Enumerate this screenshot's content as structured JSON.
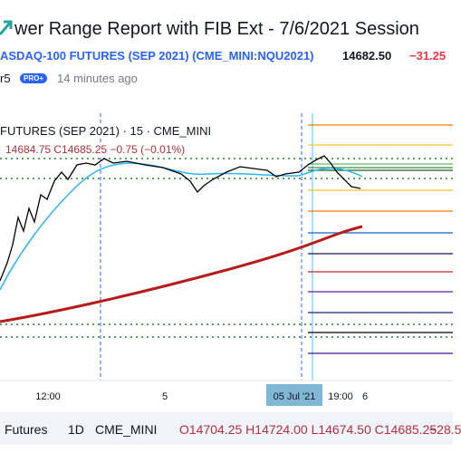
{
  "header": {
    "title": "wer Range Report with FIB Ext - 7/6/2021 Session",
    "symbol": "ASDAQ-100 FUTURES (SEP 2021) (CME_MINI:NQU2021)",
    "price": "14682.50",
    "change": "−31.25",
    "author": "r5",
    "badge": "PRO+",
    "time": "14 minutes ago"
  },
  "chart": {
    "legend": "FUTURES (SEP 2021) · 15 · CME_MINI",
    "ohlc": "14684.75 C14685.25 −0.75 (−0.01%)",
    "xaxis": [
      "12:00",
      "5",
      "19:00",
      "6"
    ],
    "crosshair_date": "05 Jul '21"
  },
  "bottom": {
    "symbol": "Futures",
    "interval": "1D",
    "exchange": "CME_MINI",
    "ohlc": "O14704.25 H14724.00 L14674.50 C14685.25",
    "change": "−28.5"
  }
}
